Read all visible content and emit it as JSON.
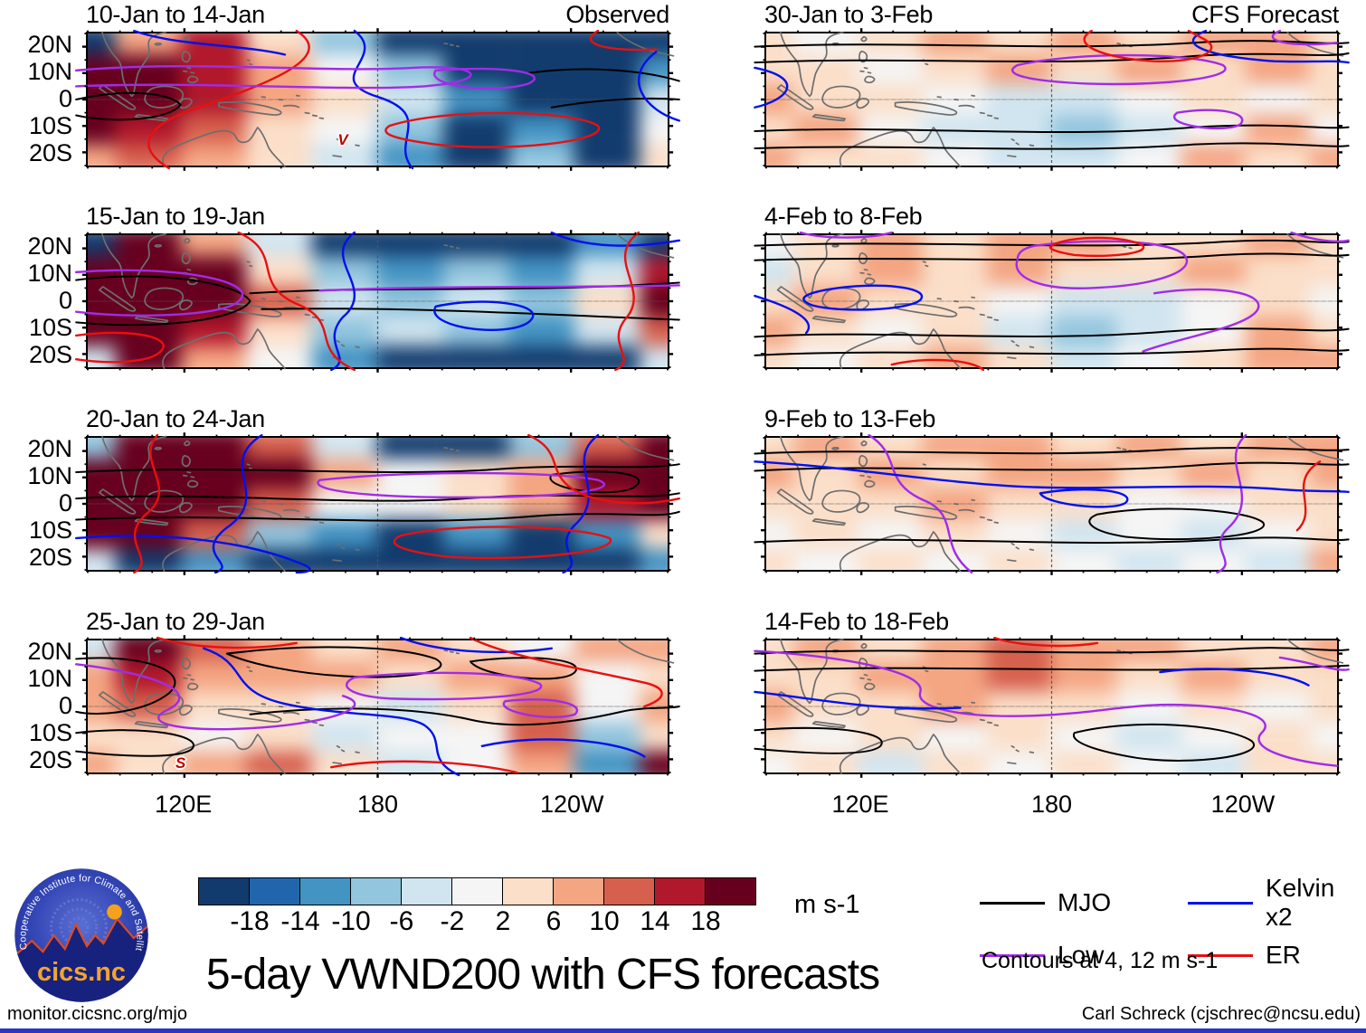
{
  "figure": {
    "title": "5-day VWND200 with CFS forecasts",
    "url": "monitor.cicsnc.org/mjo",
    "credit": "Carl Schreck (cjschrec@ncsu.edu)",
    "units_label": "m s-1",
    "contour_note": "Contours at 4, 12 m s-1"
  },
  "logo": {
    "org": "Cooperative Institute for Climate and Satellites",
    "name": "cics.nc"
  },
  "chart_data": {
    "type": "heatmap",
    "title": "5-day VWND200 with CFS forecasts",
    "variable": "VWND200",
    "units": "m s-1",
    "columns": [
      "Observed",
      "CFS Forecast"
    ],
    "lat_ticklabels": [
      "20N",
      "10N",
      "0",
      "10S",
      "20S"
    ],
    "lon_ticklabels": [
      "120E",
      "180",
      "120W"
    ],
    "lon_tick_positions_pct": [
      16.7,
      50,
      83.3
    ],
    "lat_tick_positions_pct": [
      10,
      30,
      50,
      70,
      90
    ],
    "colorbar_levels": [
      -18,
      -14,
      -10,
      -6,
      -2,
      2,
      6,
      10,
      14,
      18
    ],
    "colorbar_colors": [
      "#123B6D",
      "#2166AC",
      "#4393C3",
      "#92C5DE",
      "#D1E5F0",
      "#F5F5F5",
      "#FBDFC9",
      "#F4A582",
      "#D6604D",
      "#B2182B",
      "#67001F"
    ],
    "contour_note": "Contours at 4, 12 m s-1",
    "wave_legend": [
      {
        "label": "MJO",
        "key": "mjo",
        "color": "#000000"
      },
      {
        "label": "Kelvin x2",
        "key": "kelvin",
        "color": "#0010EE"
      },
      {
        "label": "Low",
        "key": "low",
        "color": "#A12BE8"
      },
      {
        "label": "ER",
        "key": "er",
        "color": "#E81010"
      }
    ],
    "panels": [
      {
        "period": "10-Jan to 14-Jan",
        "column": "Observed",
        "grid": [
          [
            -20,
            6,
            14,
            2,
            -10,
            -20,
            -20,
            -20,
            -20,
            -20
          ],
          [
            18,
            18,
            14,
            6,
            -2,
            -10,
            -20,
            -20,
            -20,
            -14
          ],
          [
            18,
            18,
            16,
            8,
            2,
            -6,
            -14,
            -20,
            -20,
            -6
          ],
          [
            18,
            14,
            10,
            4,
            -2,
            -10,
            -20,
            -14,
            -20,
            -2
          ],
          [
            6,
            10,
            6,
            2,
            -6,
            -14,
            -20,
            -10,
            -20,
            2
          ]
        ],
        "contours": [
          [
            "mjo",
            "M-2,50 C6,42 14,44 16,54 C14,66 4,68 -2,62"
          ],
          [
            "mjo",
            "M76,30 C86,24 96,28 102,36"
          ],
          [
            "mjo",
            "M80,56 C88,50 96,48 102,50"
          ],
          [
            "kelvin",
            "M8,-2 C16,10 26,8 34,16"
          ],
          [
            "kelvin",
            "M46,-2 C52,18 40,34 50,48 C60,62 52,82 56,102"
          ],
          [
            "kelvin",
            "M98,14 C92,34 96,58 102,66"
          ],
          [
            "er",
            "M36,-2 C44,20 28,42 18,58 C10,70 8,86 14,102"
          ],
          [
            "er",
            "M52,70 C62,56 84,58 88,70 C90,82 72,90 60,84 C53,80 50,76 52,70"
          ],
          [
            "er",
            "M88,-2 C84,8 90,14 98,12"
          ],
          [
            "low",
            "M-2,28 C18,20 40,30 56,26 C68,23 70,36 58,40 C44,44 20,36 -2,40"
          ],
          [
            "low",
            "M60,28 C72,24 80,30 76,38 C70,46 58,40 60,28"
          ]
        ],
        "markers": [
          {
            "glyph": "V",
            "x": 44,
            "y": 81
          }
        ]
      },
      {
        "period": "15-Jan to 19-Jan",
        "column": "Observed",
        "grid": [
          [
            -20,
            18,
            6,
            -6,
            -20,
            -20,
            -20,
            -20,
            -14,
            -20
          ],
          [
            18,
            18,
            18,
            2,
            -10,
            -14,
            -10,
            -14,
            -6,
            14
          ],
          [
            18,
            18,
            18,
            10,
            -6,
            -10,
            -6,
            -10,
            2,
            18
          ],
          [
            18,
            18,
            14,
            4,
            -10,
            -6,
            -10,
            -14,
            -6,
            10
          ],
          [
            -6,
            18,
            6,
            -2,
            -14,
            -20,
            -20,
            -20,
            -20,
            -6
          ]
        ],
        "contours": [
          [
            "mjo",
            "M-2,34 C12,26 26,36 28,50 C26,64 12,72 -2,66"
          ],
          [
            "mjo",
            "M28,44 C50,38 75,44 102,36"
          ],
          [
            "mjo",
            "M30,56 C55,54 78,60 102,64"
          ],
          [
            "low",
            "M-2,28 C16,22 30,36 26,50 C24,60 10,64 -2,58"
          ],
          [
            "low",
            "M40,42 C60,38 80,40 102,38"
          ],
          [
            "kelvin",
            "M46,-2 C40,18 50,40 44,62 C40,82 46,94 42,102"
          ],
          [
            "kelvin",
            "M60,54 C68,46 80,52 76,66 C72,78 58,70 60,54"
          ],
          [
            "kelvin",
            "M80,-2 C86,10 94,10 102,4"
          ],
          [
            "er",
            "M26,-2 C34,14 28,36 36,52 C44,66 38,86 46,102"
          ],
          [
            "er",
            "M95,-2 C89,18 97,40 93,62 C89,82 95,94 91,102"
          ],
          [
            "er",
            "M-2,76 C8,70 16,78 12,90 C10,96 4,98 -2,94"
          ]
        ],
        "markers": []
      },
      {
        "period": "20-Jan to 24-Jan",
        "column": "Observed",
        "grid": [
          [
            -10,
            18,
            18,
            10,
            -6,
            -20,
            -20,
            -10,
            10,
            18
          ],
          [
            18,
            18,
            18,
            18,
            6,
            -2,
            2,
            6,
            18,
            18
          ],
          [
            18,
            18,
            18,
            10,
            -2,
            -2,
            2,
            6,
            14,
            18
          ],
          [
            18,
            18,
            10,
            -10,
            -14,
            -20,
            -14,
            -20,
            -14,
            2
          ],
          [
            -6,
            -20,
            -14,
            -20,
            -20,
            -20,
            -20,
            -20,
            -20,
            -14
          ]
        ],
        "contours": [
          [
            "mjo",
            "M-2,26 C25,20 50,30 70,24 C85,19 95,25 102,20"
          ],
          [
            "mjo",
            "M-2,46 C20,40 45,52 65,46 C85,40 95,48 102,42"
          ],
          [
            "mjo",
            "M-2,62 C25,56 50,68 75,60 C90,54 98,62 102,56"
          ],
          [
            "mjo",
            "M80,28 C90,22 98,28 94,38 C90,46 78,38 80,28"
          ],
          [
            "low",
            "M40,32 C55,25 80,25 88,32 C93,40 80,46 60,45 C46,44 38,39 40,32"
          ],
          [
            "kelvin",
            "M30,-2 C22,20 32,44 24,68 C18,88 26,96 22,102"
          ],
          [
            "kelvin",
            "M88,-2 C82,18 90,42 84,66 C80,84 86,94 82,102"
          ],
          [
            "kelvin",
            "M-2,76 C14,70 28,80 36,94 C40,100 38,102 36,102"
          ],
          [
            "er",
            "M12,-2 C8,18 16,38 10,58 C5,78 12,92 8,102"
          ],
          [
            "er",
            "M54,74 C64,64 84,66 90,76 C92,86 76,94 62,90 C54,86 51,80 54,74"
          ],
          [
            "er",
            "M76,-2 C83,12 78,30 86,44 C92,52 98,50 102,46"
          ]
        ],
        "markers": []
      },
      {
        "period": "25-Jan to 29-Jan",
        "column": "Observed",
        "grid": [
          [
            -6,
            18,
            10,
            6,
            2,
            6,
            2,
            -2,
            6,
            6
          ],
          [
            6,
            14,
            6,
            6,
            6,
            2,
            6,
            6,
            -2,
            2
          ],
          [
            6,
            10,
            2,
            2,
            -2,
            -6,
            2,
            10,
            -2,
            6
          ],
          [
            2,
            2,
            -2,
            2,
            -6,
            -2,
            -2,
            10,
            -10,
            2
          ],
          [
            6,
            2,
            6,
            10,
            2,
            -6,
            -2,
            6,
            -14,
            18
          ]
        ],
        "contours": [
          [
            "mjo",
            "M-2,14 C10,10 18,24 14,40 C10,54 2,58 -2,54"
          ],
          [
            "mjo",
            "M24,10 C38,2 54,4 60,14 C64,24 54,30 44,27 C36,25 28,18 24,10"
          ],
          [
            "mjo",
            "M28,56 C44,48 58,52 66,60 C74,68 84,62 92,54 C96,50 100,52 102,50"
          ],
          [
            "mjo",
            "M66,16 C76,10 86,14 84,24 C82,34 68,28 66,16"
          ],
          [
            "mjo",
            "M-2,70 C10,64 20,72 18,82 C16,90 6,88 -2,84"
          ],
          [
            "kelvin",
            "M20,6 C28,18 24,38 34,48 C44,58 54,54 58,64 C62,76 58,90 64,102"
          ],
          [
            "kelvin",
            "M54,-2 C60,8 70,12 80,6"
          ],
          [
            "kelvin",
            "M68,80 C78,70 92,76 96,88"
          ],
          [
            "low",
            "M-2,18 C10,24 20,38 14,52 C8,64 18,70 30,66 C42,62 50,50 44,42"
          ],
          [
            "low",
            "M46,28 C60,22 74,24 78,33 C80,42 66,46 52,44 C45,42 43,34 46,28"
          ],
          [
            "low",
            "M72,46 C80,42 86,48 84,56 C80,62 70,54 72,46"
          ],
          [
            "er",
            "M12,-2 C18,6 28,8 36,2"
          ],
          [
            "er",
            "M66,-2 C72,12 86,22 96,32 C100,36 100,44 96,50"
          ],
          [
            "er",
            "M42,96 C52,88 66,92 74,100"
          ]
        ],
        "markers": [
          {
            "glyph": "S",
            "x": 16,
            "y": 93
          }
        ]
      },
      {
        "period": "30-Jan to 3-Feb",
        "column": "CFS Forecast",
        "grid": [
          [
            2,
            -2,
            2,
            6,
            2,
            6,
            2,
            6,
            6,
            2
          ],
          [
            2,
            2,
            -2,
            2,
            6,
            2,
            6,
            2,
            6,
            2
          ],
          [
            6,
            2,
            2,
            -2,
            -6,
            -6,
            -2,
            2,
            -2,
            2
          ],
          [
            2,
            6,
            -2,
            -6,
            -6,
            -10,
            -6,
            -2,
            6,
            -2
          ],
          [
            6,
            2,
            2,
            -2,
            -6,
            -6,
            -2,
            6,
            2,
            6
          ]
        ],
        "contours": [
          [
            "mjo",
            "M-2,10 C25,5 50,14 75,7 C90,3 97,9 102,7"
          ],
          [
            "mjo",
            "M-2,22 C25,17 50,26 75,17 C90,13 98,19 102,15"
          ],
          [
            "mjo",
            "M-2,74 C25,69 50,80 75,71 C90,67 98,73 102,71"
          ],
          [
            "mjo",
            "M-2,87 C25,83 50,92 75,84 C90,81 98,87 102,85"
          ],
          [
            "low",
            "M44,24 C54,14 74,14 80,24 C83,33 70,40 56,38 C46,36 41,31 44,24"
          ],
          [
            "low",
            "M72,60 C79,55 85,60 83,69 C80,76 69,69 72,60"
          ],
          [
            "low",
            "M90,-2 C86,5 92,11 100,7"
          ],
          [
            "kelvin",
            "M-2,26 C7,34 4,50 -2,56"
          ],
          [
            "kelvin",
            "M77,-2 C71,8 78,18 89,21 C95,22 99,20 102,22"
          ],
          [
            "er",
            "M57,-2 C53,8 59,19 68,21 C76,22 80,13 77,5 L74,-2"
          ]
        ],
        "markers": []
      },
      {
        "period": "4-Feb to 8-Feb",
        "column": "CFS Forecast",
        "grid": [
          [
            -2,
            2,
            6,
            2,
            6,
            6,
            2,
            2,
            6,
            2
          ],
          [
            -6,
            2,
            6,
            2,
            6,
            2,
            2,
            6,
            2,
            2
          ],
          [
            2,
            6,
            2,
            2,
            -2,
            -6,
            -6,
            -2,
            2,
            -2
          ],
          [
            6,
            2,
            -2,
            2,
            -6,
            -10,
            -6,
            -2,
            6,
            2
          ],
          [
            2,
            -2,
            2,
            6,
            2,
            -6,
            -2,
            2,
            6,
            6
          ]
        ],
        "contours": [
          [
            "mjo",
            "M-2,8 C25,3 55,12 80,5 C92,2 98,7 102,5"
          ],
          [
            "mjo",
            "M-2,19 C25,15 55,23 80,15 C92,12 98,17 102,15"
          ],
          [
            "mjo",
            "M-2,77 C20,71 45,82 70,73 C88,67 96,75 102,71"
          ],
          [
            "mjo",
            "M-2,91 C25,85 55,94 80,87 C92,84 98,89 102,87"
          ],
          [
            "low",
            "M47,8 C58,2 70,4 73,14 C76,26 69,38 57,40 C47,42 43,30 44,19 C44,13 45,10 47,8"
          ],
          [
            "low",
            "M68,44 C78,37 88,43 86,57 C84,70 72,78 66,88"
          ],
          [
            "low",
            "M6,-2 C10,3 18,3 22,-2"
          ],
          [
            "low",
            "M92,-2 C96,4 100,6 102,4"
          ],
          [
            "kelvin",
            "M11,41 C19,35 29,39 27,49 C25,57 13,59 8,53 C5,48 7,44 11,41"
          ],
          [
            "kelvin",
            "M-2,46 C4,54 9,64 7,74"
          ],
          [
            "er",
            "M50,8 C53,0 63,0 66,8 C67,14 60,17 54,15 C51,13 49,10 50,8"
          ],
          [
            "er",
            "M22,98 C28,92 36,94 38,102"
          ]
        ],
        "markers": []
      },
      {
        "period": "9-Feb to 13-Feb",
        "column": "CFS Forecast",
        "grid": [
          [
            2,
            6,
            2,
            6,
            6,
            2,
            6,
            2,
            6,
            6
          ],
          [
            6,
            2,
            6,
            2,
            6,
            6,
            2,
            6,
            2,
            6
          ],
          [
            2,
            2,
            2,
            6,
            2,
            2,
            -2,
            -2,
            2,
            2
          ],
          [
            -2,
            2,
            -2,
            2,
            -2,
            -6,
            -2,
            -6,
            -2,
            2
          ],
          [
            2,
            -2,
            2,
            -2,
            2,
            -2,
            -6,
            -2,
            -6,
            6
          ]
        ],
        "contours": [
          [
            "mjo",
            "M-2,12 C20,7 45,16 70,9 C88,5 96,11 102,9"
          ],
          [
            "mjo",
            "M-2,25 C20,19 50,29 75,21 C90,16 98,22 102,20"
          ],
          [
            "mjo",
            "M-2,79 C25,73 55,84 80,77 C92,73 98,79 102,77"
          ],
          [
            "mjo",
            "M58,58 C68,50 84,54 87,64 C89,74 74,80 63,75 C57,71 55,63 58,58"
          ],
          [
            "low",
            "M18,-2 C24,14 20,34 28,48 C34,60 30,82 36,102"
          ],
          [
            "low",
            "M84,-2 C79,18 87,44 81,68 C77,84 83,94 79,102"
          ],
          [
            "kelvin",
            "M-2,18 C15,22 30,34 45,37 C60,40 75,34 90,39 C96,41 100,40 102,41"
          ],
          [
            "kelvin",
            "M48,42 C56,36 65,40 63,49 C61,56 49,51 48,42"
          ],
          [
            "er",
            "M97,18 C91,34 97,54 93,70"
          ]
        ],
        "markers": []
      },
      {
        "period": "14-Feb to 18-Feb",
        "column": "CFS Forecast",
        "grid": [
          [
            2,
            6,
            2,
            6,
            10,
            6,
            6,
            2,
            2,
            6
          ],
          [
            2,
            2,
            6,
            6,
            10,
            6,
            2,
            6,
            2,
            2
          ],
          [
            6,
            2,
            2,
            6,
            2,
            2,
            -2,
            2,
            -2,
            2
          ],
          [
            2,
            -2,
            2,
            -2,
            2,
            -2,
            -6,
            -2,
            2,
            -2
          ],
          [
            -2,
            2,
            -6,
            2,
            -2,
            2,
            -2,
            -6,
            2,
            2
          ]
        ],
        "contours": [
          [
            "mjo",
            "M-2,10 C25,4 55,13 80,7 C92,3 98,9 102,7"
          ],
          [
            "mjo",
            "M-2,23 C30,17 60,27 102,19"
          ],
          [
            "mjo",
            "M-2,68 C12,63 22,70 20,80 C18,88 8,86 -2,82"
          ],
          [
            "mjo",
            "M54,70 C64,59 80,63 85,76 C88,87 75,95 65,89 C58,84 53,77 54,70"
          ],
          [
            "low",
            "M-2,8 C14,12 28,24 27,39 C26,51 34,59 47,57 C59,55 64,47 74,49 C84,51 89,59 87,69 C84,81 91,91 100,95"
          ],
          [
            "low",
            "M90,13 C96,17 100,24 102,22"
          ],
          [
            "kelvin",
            "M-2,39 C9,44 19,54 34,51"
          ],
          [
            "kelvin",
            "M69,24 C79,18 91,24 95,34"
          ],
          [
            "er",
            "M40,-2 C44,4 52,6 58,2"
          ]
        ],
        "markers": []
      }
    ]
  }
}
